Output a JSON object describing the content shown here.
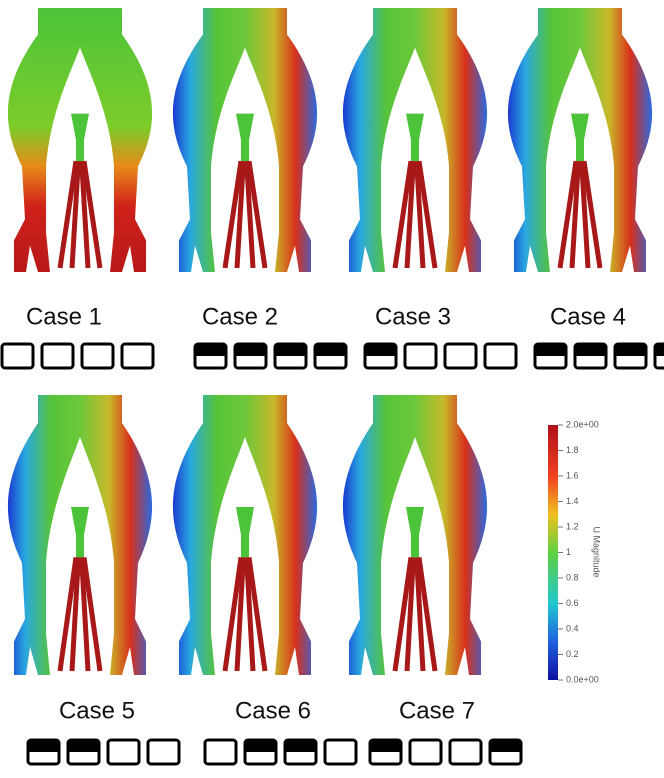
{
  "cases": [
    {
      "label": "Case 1",
      "valves": [
        false,
        false,
        false,
        false
      ]
    },
    {
      "label": "Case 2",
      "valves": [
        true,
        true,
        true,
        true
      ]
    },
    {
      "label": "Case 3",
      "valves": [
        true,
        false,
        false,
        false
      ]
    },
    {
      "label": "Case 4",
      "valves": [
        true,
        true,
        true,
        true
      ]
    },
    {
      "label": "Case 5",
      "valves": [
        true,
        true,
        false,
        false
      ]
    },
    {
      "label": "Case 6",
      "valves": [
        false,
        true,
        true,
        false
      ]
    },
    {
      "label": "Case 7",
      "valves": [
        true,
        false,
        false,
        true
      ]
    }
  ],
  "colorbar": {
    "title": "U Magnitude",
    "range": [
      0,
      2
    ],
    "ticks": [
      {
        "value": 2,
        "label": "2.0e+00"
      },
      1.8,
      1.6,
      1.4,
      1.2,
      1,
      0.8,
      0.6,
      0.4,
      0.2,
      {
        "value": 0,
        "label": "0.0e+00"
      }
    ]
  }
}
